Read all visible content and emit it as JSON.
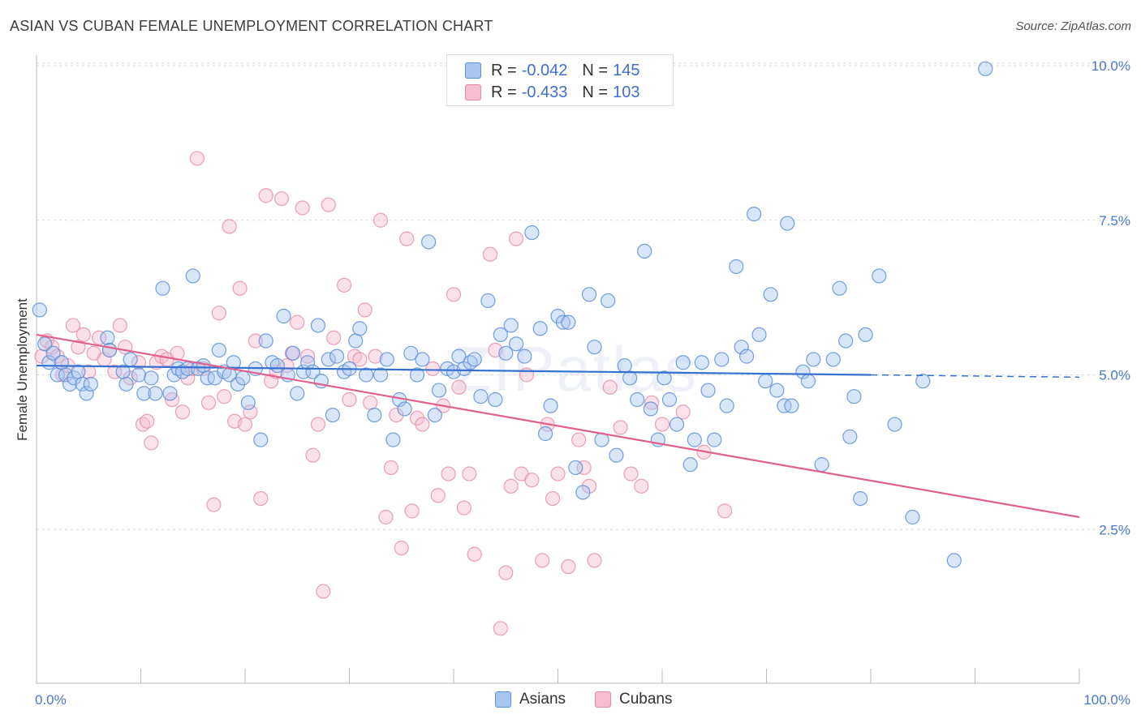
{
  "header": {
    "title": "ASIAN VS CUBAN FEMALE UNEMPLOYMENT CORRELATION CHART",
    "source": "Source: ZipAtlas.com"
  },
  "legend": {
    "rows": [
      {
        "r_label": "R =",
        "r_value": "-0.042",
        "n_label": "N =",
        "n_value": "145"
      },
      {
        "r_label": "R =",
        "r_value": "-0.433",
        "n_label": "N =",
        "n_value": "103"
      }
    ]
  },
  "bottom_legend": {
    "asians": "Asians",
    "cubans": "Cubans"
  },
  "watermark": {
    "a": "ZIP",
    "b": "atlas"
  },
  "colors": {
    "asian_fill": "#aac6f0",
    "asian_stroke": "#5b8fd8",
    "asian_line": "#3572d0",
    "cuban_fill": "#f6bcd0",
    "cuban_stroke": "#e58aa8",
    "cuban_line": "#e0608e"
  },
  "chart_data": {
    "type": "scatter",
    "title": "ASIAN VS CUBAN FEMALE UNEMPLOYMENT CORRELATION CHART",
    "xlabel": "",
    "ylabel": "Female Unemployment",
    "xlim": [
      0,
      100
    ],
    "ylim": [
      0,
      10.5
    ],
    "x_tick_labels": [
      "0.0%",
      "100.0%"
    ],
    "y_ticks": [
      2.5,
      5.0,
      7.5,
      10.0
    ],
    "y_tick_labels": [
      "2.5%",
      "5.0%",
      "7.5%",
      "10.0%"
    ],
    "grid": true,
    "series": [
      {
        "name": "Asians",
        "trend": {
          "x0": 0,
          "y0": 5.15,
          "x1": 80,
          "y1": 5.0,
          "dash_to": 100
        },
        "points": [
          [
            0.3,
            6.05
          ],
          [
            0.8,
            5.5
          ],
          [
            1.2,
            5.2
          ],
          [
            1.6,
            5.35
          ],
          [
            2.0,
            5.0
          ],
          [
            2.4,
            5.2
          ],
          [
            2.8,
            5.0
          ],
          [
            3.2,
            4.85
          ],
          [
            3.6,
            4.95
          ],
          [
            4.0,
            5.05
          ],
          [
            4.4,
            4.85
          ],
          [
            4.8,
            4.7
          ],
          [
            5.2,
            4.85
          ],
          [
            6.8,
            5.6
          ],
          [
            7.0,
            5.4
          ],
          [
            8.3,
            5.05
          ],
          [
            8.6,
            4.85
          ],
          [
            9.0,
            5.25
          ],
          [
            9.8,
            5.0
          ],
          [
            10.3,
            4.7
          ],
          [
            11.0,
            4.95
          ],
          [
            11.4,
            4.7
          ],
          [
            12.1,
            6.4
          ],
          [
            12.8,
            4.7
          ],
          [
            13.2,
            5.0
          ],
          [
            13.6,
            5.1
          ],
          [
            14.0,
            5.05
          ],
          [
            14.5,
            5.1
          ],
          [
            15.0,
            6.6
          ],
          [
            15.5,
            5.1
          ],
          [
            16.0,
            5.15
          ],
          [
            16.4,
            4.95
          ],
          [
            17.1,
            4.95
          ],
          [
            17.5,
            5.4
          ],
          [
            18.0,
            5.05
          ],
          [
            18.5,
            5.0
          ],
          [
            18.9,
            5.2
          ],
          [
            19.3,
            4.85
          ],
          [
            19.8,
            4.95
          ],
          [
            20.3,
            4.55
          ],
          [
            21.0,
            5.1
          ],
          [
            21.5,
            3.95
          ],
          [
            22.0,
            5.55
          ],
          [
            22.6,
            5.2
          ],
          [
            23.1,
            5.15
          ],
          [
            23.7,
            5.95
          ],
          [
            24.1,
            5.0
          ],
          [
            24.6,
            5.35
          ],
          [
            25.0,
            4.7
          ],
          [
            25.6,
            5.05
          ],
          [
            26.0,
            5.2
          ],
          [
            26.5,
            5.05
          ],
          [
            27.0,
            5.8
          ],
          [
            27.3,
            4.9
          ],
          [
            28.0,
            5.25
          ],
          [
            28.4,
            4.35
          ],
          [
            28.8,
            5.3
          ],
          [
            29.5,
            5.05
          ],
          [
            30.0,
            5.1
          ],
          [
            30.6,
            5.55
          ],
          [
            31.0,
            5.75
          ],
          [
            31.6,
            5.0
          ],
          [
            32.4,
            4.35
          ],
          [
            33.0,
            5.0
          ],
          [
            33.6,
            5.25
          ],
          [
            34.2,
            3.95
          ],
          [
            34.8,
            4.6
          ],
          [
            35.3,
            4.45
          ],
          [
            35.9,
            5.35
          ],
          [
            36.5,
            5.0
          ],
          [
            37.0,
            5.25
          ],
          [
            37.6,
            7.15
          ],
          [
            38.2,
            4.35
          ],
          [
            38.6,
            4.75
          ],
          [
            39.4,
            5.1
          ],
          [
            40.0,
            5.05
          ],
          [
            40.5,
            5.3
          ],
          [
            41.0,
            5.1
          ],
          [
            41.6,
            5.2
          ],
          [
            42.0,
            5.25
          ],
          [
            42.6,
            4.65
          ],
          [
            43.3,
            6.2
          ],
          [
            44.0,
            4.6
          ],
          [
            44.5,
            5.65
          ],
          [
            45.0,
            5.35
          ],
          [
            45.5,
            5.8
          ],
          [
            46.0,
            5.5
          ],
          [
            46.8,
            5.3
          ],
          [
            47.5,
            7.3
          ],
          [
            48.3,
            5.75
          ],
          [
            48.8,
            4.05
          ],
          [
            49.3,
            4.5
          ],
          [
            50.0,
            5.95
          ],
          [
            50.5,
            5.85
          ],
          [
            51.0,
            5.85
          ],
          [
            51.7,
            3.5
          ],
          [
            52.4,
            3.1
          ],
          [
            53.0,
            6.3
          ],
          [
            53.5,
            5.45
          ],
          [
            54.2,
            3.95
          ],
          [
            54.8,
            6.2
          ],
          [
            55.6,
            3.7
          ],
          [
            56.4,
            5.15
          ],
          [
            56.9,
            4.95
          ],
          [
            57.6,
            4.6
          ],
          [
            58.3,
            7.0
          ],
          [
            58.9,
            4.45
          ],
          [
            59.6,
            3.95
          ],
          [
            60.2,
            4.95
          ],
          [
            60.7,
            4.6
          ],
          [
            61.4,
            4.2
          ],
          [
            62.0,
            5.2
          ],
          [
            62.7,
            3.55
          ],
          [
            63.1,
            3.95
          ],
          [
            63.8,
            5.2
          ],
          [
            64.4,
            4.75
          ],
          [
            65.0,
            3.95
          ],
          [
            65.7,
            5.25
          ],
          [
            66.2,
            4.5
          ],
          [
            67.1,
            6.75
          ],
          [
            67.6,
            5.45
          ],
          [
            68.1,
            5.3
          ],
          [
            68.8,
            7.6
          ],
          [
            69.3,
            5.65
          ],
          [
            69.9,
            4.9
          ],
          [
            70.4,
            6.3
          ],
          [
            71.0,
            4.75
          ],
          [
            71.7,
            4.5
          ],
          [
            72.0,
            7.45
          ],
          [
            72.4,
            4.5
          ],
          [
            73.5,
            5.05
          ],
          [
            74.0,
            4.9
          ],
          [
            74.5,
            5.25
          ],
          [
            75.3,
            3.55
          ],
          [
            76.4,
            5.25
          ],
          [
            77.0,
            6.4
          ],
          [
            77.6,
            5.55
          ],
          [
            78.0,
            4.0
          ],
          [
            78.4,
            4.65
          ],
          [
            79.0,
            3.0
          ],
          [
            79.5,
            5.65
          ],
          [
            80.8,
            6.6
          ],
          [
            82.3,
            4.2
          ],
          [
            84.0,
            2.7
          ],
          [
            85.0,
            4.9
          ],
          [
            88.0,
            2.0
          ],
          [
            91.0,
            9.95
          ]
        ]
      },
      {
        "name": "Cubans",
        "trend": {
          "x0": 0,
          "y0": 5.65,
          "x1": 100,
          "y1": 2.7
        },
        "points": [
          [
            0.5,
            5.3
          ],
          [
            1.0,
            5.55
          ],
          [
            1.5,
            5.45
          ],
          [
            2.0,
            5.3
          ],
          [
            2.5,
            5.0
          ],
          [
            3.0,
            5.15
          ],
          [
            3.5,
            5.8
          ],
          [
            4.0,
            5.45
          ],
          [
            4.5,
            5.65
          ],
          [
            5.0,
            5.05
          ],
          [
            5.5,
            5.35
          ],
          [
            6.0,
            5.6
          ],
          [
            6.5,
            5.25
          ],
          [
            7.0,
            5.4
          ],
          [
            7.5,
            5.05
          ],
          [
            8.0,
            5.8
          ],
          [
            8.5,
            5.45
          ],
          [
            9.0,
            4.95
          ],
          [
            9.8,
            5.2
          ],
          [
            10.2,
            4.2
          ],
          [
            10.6,
            4.25
          ],
          [
            11.0,
            3.9
          ],
          [
            11.5,
            5.2
          ],
          [
            12.0,
            5.3
          ],
          [
            12.5,
            5.25
          ],
          [
            13.0,
            4.6
          ],
          [
            13.5,
            5.35
          ],
          [
            14.0,
            4.4
          ],
          [
            14.5,
            4.95
          ],
          [
            15.0,
            5.1
          ],
          [
            15.4,
            8.5
          ],
          [
            16.0,
            5.1
          ],
          [
            16.5,
            4.55
          ],
          [
            17.0,
            2.9
          ],
          [
            17.5,
            6.0
          ],
          [
            18.0,
            4.65
          ],
          [
            18.5,
            7.4
          ],
          [
            19.0,
            4.25
          ],
          [
            19.5,
            6.4
          ],
          [
            20.0,
            4.2
          ],
          [
            20.5,
            4.4
          ],
          [
            21.0,
            5.55
          ],
          [
            21.5,
            3.0
          ],
          [
            22.0,
            7.9
          ],
          [
            22.5,
            4.9
          ],
          [
            23.0,
            5.05
          ],
          [
            23.5,
            7.85
          ],
          [
            24.0,
            5.15
          ],
          [
            24.5,
            5.35
          ],
          [
            25.0,
            5.85
          ],
          [
            25.5,
            7.7
          ],
          [
            26.0,
            5.3
          ],
          [
            26.5,
            3.7
          ],
          [
            27.0,
            4.2
          ],
          [
            27.5,
            1.5
          ],
          [
            28.0,
            7.75
          ],
          [
            28.5,
            5.6
          ],
          [
            29.5,
            6.45
          ],
          [
            30.0,
            4.6
          ],
          [
            30.5,
            5.3
          ],
          [
            31.0,
            5.25
          ],
          [
            31.5,
            6.05
          ],
          [
            32.0,
            4.55
          ],
          [
            32.5,
            5.3
          ],
          [
            33.0,
            7.5
          ],
          [
            33.5,
            2.7
          ],
          [
            34.0,
            3.5
          ],
          [
            34.5,
            4.35
          ],
          [
            35.0,
            2.2
          ],
          [
            35.5,
            7.2
          ],
          [
            36.0,
            2.8
          ],
          [
            36.5,
            4.3
          ],
          [
            37.0,
            4.2
          ],
          [
            38.0,
            5.1
          ],
          [
            38.5,
            3.05
          ],
          [
            39.0,
            4.5
          ],
          [
            39.5,
            3.4
          ],
          [
            40.0,
            6.3
          ],
          [
            40.5,
            4.8
          ],
          [
            41.0,
            2.85
          ],
          [
            41.5,
            3.4
          ],
          [
            42.0,
            2.1
          ],
          [
            43.5,
            6.95
          ],
          [
            44.0,
            5.4
          ],
          [
            44.5,
            0.9
          ],
          [
            45.0,
            1.8
          ],
          [
            45.5,
            3.2
          ],
          [
            46.0,
            7.2
          ],
          [
            46.5,
            3.4
          ],
          [
            47.0,
            5.0
          ],
          [
            47.5,
            3.3
          ],
          [
            48.5,
            2.0
          ],
          [
            49.0,
            4.2
          ],
          [
            49.5,
            3.0
          ],
          [
            50.0,
            3.4
          ],
          [
            51.0,
            1.9
          ],
          [
            52.0,
            3.95
          ],
          [
            52.5,
            3.5
          ],
          [
            53.0,
            3.2
          ],
          [
            53.5,
            2.0
          ],
          [
            55.0,
            4.8
          ],
          [
            56.0,
            4.15
          ],
          [
            57.0,
            3.4
          ],
          [
            58.0,
            3.2
          ],
          [
            59.0,
            4.55
          ],
          [
            60.0,
            4.2
          ],
          [
            62.0,
            4.4
          ],
          [
            64.0,
            3.75
          ],
          [
            66.0,
            2.8
          ]
        ]
      }
    ]
  }
}
